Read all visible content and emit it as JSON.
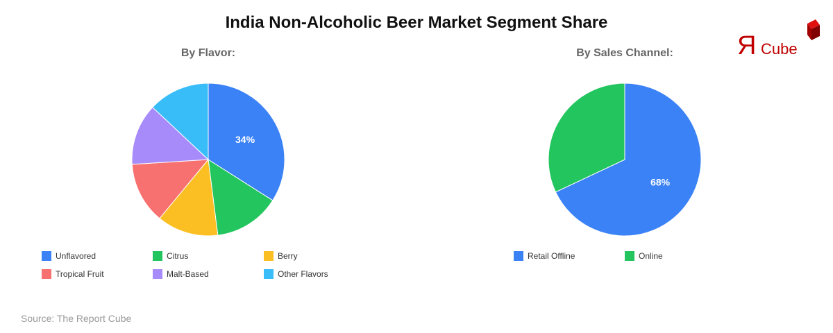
{
  "title": "India Non-Alcoholic Beer Market Segment Share",
  "source": "Source: The Report Cube",
  "logo": {
    "text_r": "Я",
    "text_cube": "Cube"
  },
  "chart_data": [
    {
      "type": "pie",
      "title": "By Flavor:",
      "categories": [
        "Unflavored",
        "Citrus",
        "Berry",
        "Tropical Fruit",
        "Malt-Based",
        "Other Flavors"
      ],
      "values": [
        34,
        14,
        13,
        13,
        13,
        13
      ],
      "colors": [
        "#3b82f6",
        "#22c55e",
        "#fbbf24",
        "#f87171",
        "#a78bfa",
        "#38bdf8"
      ],
      "labels_shown": [
        "34%"
      ]
    },
    {
      "type": "pie",
      "title": "By Sales Channel:",
      "categories": [
        "Retail Offline",
        "Online"
      ],
      "values": [
        68,
        32
      ],
      "colors": [
        "#3b82f6",
        "#22c55e"
      ],
      "labels_shown": [
        "68%"
      ]
    }
  ]
}
